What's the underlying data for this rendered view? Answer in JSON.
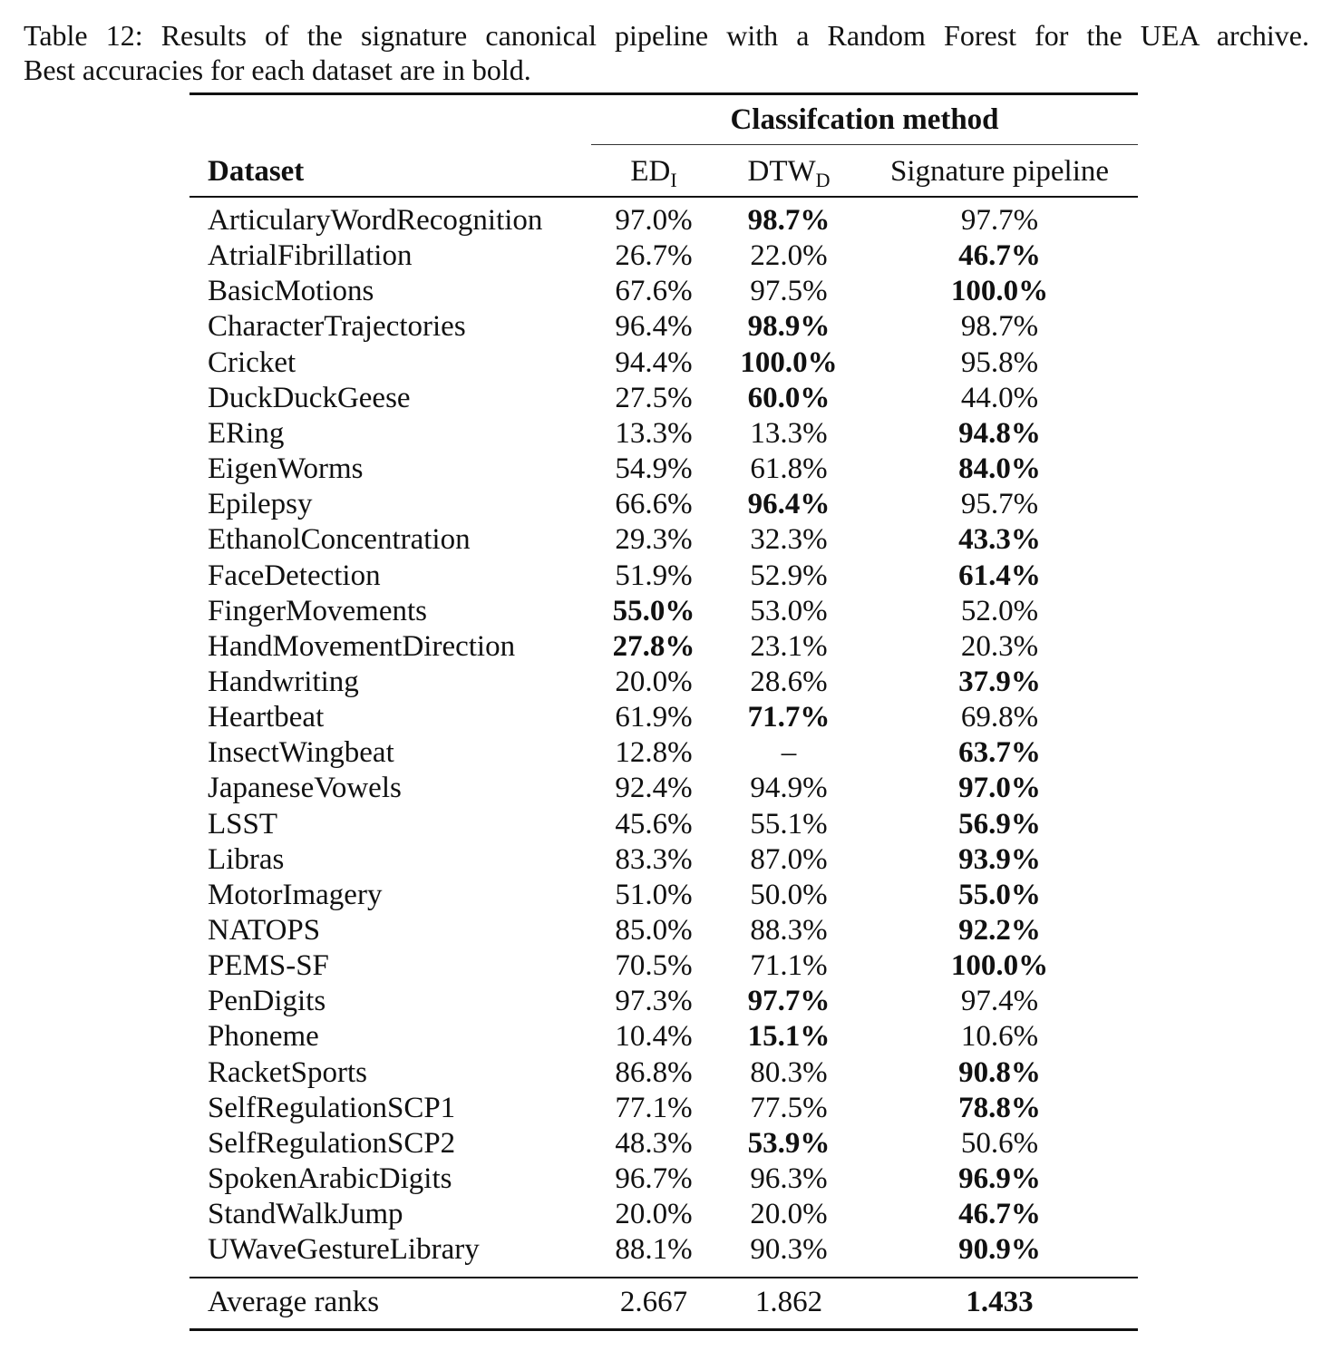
{
  "caption": {
    "line1": "Table 12: Results of the signature canonical pipeline with a Random Forest for the UEA archive.",
    "line2": "Best accuracies for each dataset are in bold."
  },
  "table": {
    "group_header": "Classifcation method",
    "columns": {
      "dataset": "Dataset",
      "ed": "ED",
      "ed_sub": "I",
      "dtw": "DTW",
      "dtw_sub": "D",
      "sig": "Signature pipeline"
    },
    "rows": [
      {
        "name": "ArticularyWordRecognition",
        "ed": "97.0%",
        "dtw": "98.7%",
        "sig": "97.7%",
        "best": "dtw"
      },
      {
        "name": "AtrialFibrillation",
        "ed": "26.7%",
        "dtw": "22.0%",
        "sig": "46.7%",
        "best": "sig"
      },
      {
        "name": "BasicMotions",
        "ed": "67.6%",
        "dtw": "97.5%",
        "sig": "100.0%",
        "best": "sig"
      },
      {
        "name": "CharacterTrajectories",
        "ed": "96.4%",
        "dtw": "98.9%",
        "sig": "98.7%",
        "best": "dtw"
      },
      {
        "name": "Cricket",
        "ed": "94.4%",
        "dtw": "100.0%",
        "sig": "95.8%",
        "best": "dtw"
      },
      {
        "name": "DuckDuckGeese",
        "ed": "27.5%",
        "dtw": "60.0%",
        "sig": "44.0%",
        "best": "dtw"
      },
      {
        "name": "ERing",
        "ed": "13.3%",
        "dtw": "13.3%",
        "sig": "94.8%",
        "best": "sig"
      },
      {
        "name": "EigenWorms",
        "ed": "54.9%",
        "dtw": "61.8%",
        "sig": "84.0%",
        "best": "sig"
      },
      {
        "name": "Epilepsy",
        "ed": "66.6%",
        "dtw": "96.4%",
        "sig": "95.7%",
        "best": "dtw"
      },
      {
        "name": "EthanolConcentration",
        "ed": "29.3%",
        "dtw": "32.3%",
        "sig": "43.3%",
        "best": "sig"
      },
      {
        "name": "FaceDetection",
        "ed": "51.9%",
        "dtw": "52.9%",
        "sig": "61.4%",
        "best": "sig"
      },
      {
        "name": "FingerMovements",
        "ed": "55.0%",
        "dtw": "53.0%",
        "sig": "52.0%",
        "best": "ed"
      },
      {
        "name": "HandMovementDirection",
        "ed": "27.8%",
        "dtw": "23.1%",
        "sig": "20.3%",
        "best": "ed"
      },
      {
        "name": "Handwriting",
        "ed": "20.0%",
        "dtw": "28.6%",
        "sig": "37.9%",
        "best": "sig"
      },
      {
        "name": "Heartbeat",
        "ed": "61.9%",
        "dtw": "71.7%",
        "sig": "69.8%",
        "best": "dtw"
      },
      {
        "name": "InsectWingbeat",
        "ed": "12.8%",
        "dtw": "–",
        "sig": "63.7%",
        "best": "sig"
      },
      {
        "name": "JapaneseVowels",
        "ed": "92.4%",
        "dtw": "94.9%",
        "sig": "97.0%",
        "best": "sig"
      },
      {
        "name": "LSST",
        "ed": "45.6%",
        "dtw": "55.1%",
        "sig": "56.9%",
        "best": "sig"
      },
      {
        "name": "Libras",
        "ed": "83.3%",
        "dtw": "87.0%",
        "sig": "93.9%",
        "best": "sig"
      },
      {
        "name": "MotorImagery",
        "ed": "51.0%",
        "dtw": "50.0%",
        "sig": "55.0%",
        "best": "sig"
      },
      {
        "name": "NATOPS",
        "ed": "85.0%",
        "dtw": "88.3%",
        "sig": "92.2%",
        "best": "sig"
      },
      {
        "name": "PEMS-SF",
        "ed": "70.5%",
        "dtw": "71.1%",
        "sig": "100.0%",
        "best": "sig"
      },
      {
        "name": "PenDigits",
        "ed": "97.3%",
        "dtw": "97.7%",
        "sig": "97.4%",
        "best": "dtw"
      },
      {
        "name": "Phoneme",
        "ed": "10.4%",
        "dtw": "15.1%",
        "sig": "10.6%",
        "best": "dtw"
      },
      {
        "name": "RacketSports",
        "ed": "86.8%",
        "dtw": "80.3%",
        "sig": "90.8%",
        "best": "sig"
      },
      {
        "name": "SelfRegulationSCP1",
        "ed": "77.1%",
        "dtw": "77.5%",
        "sig": "78.8%",
        "best": "sig"
      },
      {
        "name": "SelfRegulationSCP2",
        "ed": "48.3%",
        "dtw": "53.9%",
        "sig": "50.6%",
        "best": "dtw"
      },
      {
        "name": "SpokenArabicDigits",
        "ed": "96.7%",
        "dtw": "96.3%",
        "sig": "96.9%",
        "best": "sig"
      },
      {
        "name": "StandWalkJump",
        "ed": "20.0%",
        "dtw": "20.0%",
        "sig": "46.7%",
        "best": "sig"
      },
      {
        "name": "UWaveGestureLibrary",
        "ed": "88.1%",
        "dtw": "90.3%",
        "sig": "90.9%",
        "best": "sig"
      }
    ],
    "footer": {
      "name": "Average ranks",
      "ed": "2.667",
      "dtw": "1.862",
      "sig": "1.433",
      "best": "sig"
    }
  }
}
